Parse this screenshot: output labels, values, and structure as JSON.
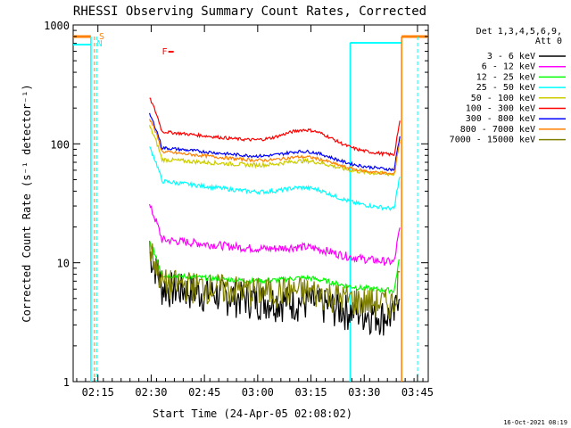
{
  "chart_data": {
    "type": "line",
    "title": "RHESSI Observing Summary Count Rates, Corrected",
    "xlabel": "Start Time (24-Apr-05 02:08:02)",
    "ylabel": "Corrected Count Rate (s⁻¹ detector⁻¹)",
    "y_scale": "log",
    "ylim": [
      1,
      1000
    ],
    "xlim_minutes_after_0208": [
      0,
      100
    ],
    "x_ticks": [
      {
        "label": "02:15",
        "minutes": 6.97
      },
      {
        "label": "02:30",
        "minutes": 21.97
      },
      {
        "label": "02:45",
        "minutes": 36.97
      },
      {
        "label": "03:00",
        "minutes": 51.97
      },
      {
        "label": "03:15",
        "minutes": 66.97
      },
      {
        "label": "03:30",
        "minutes": 81.97
      },
      {
        "label": "03:45",
        "minutes": 96.97
      }
    ],
    "y_ticks": [
      {
        "label": "1",
        "value": 1
      },
      {
        "label": "10",
        "value": 10
      },
      {
        "label": "100",
        "value": 100
      },
      {
        "label": "1000",
        "value": 1000
      }
    ],
    "legend_title": [
      "Det 1,3,4,5,6,9,",
      "Att 0"
    ],
    "legend_position": "right",
    "series": [
      {
        "name": "3 - 6 keV",
        "color": "#000000",
        "start": 6.5,
        "end": 3.5,
        "hump": 0.3,
        "noise": 0.35
      },
      {
        "name": "6 - 12 keV",
        "color": "#ff00ff",
        "start": 16,
        "end": 10,
        "hump": 1.6,
        "noise": 0.08
      },
      {
        "name": "12 - 25 keV",
        "color": "#00ff00",
        "start": 8,
        "end": 5.8,
        "hump": 0.9,
        "noise": 0.05
      },
      {
        "name": "25 - 50 keV",
        "color": "#00ffff",
        "start": 50,
        "end": 28,
        "hump": 8,
        "noise": 0.04
      },
      {
        "name": "50 - 100 keV",
        "color": "#cccc00",
        "start": 75,
        "end": 55,
        "hump": 10,
        "noise": 0.04
      },
      {
        "name": "100 - 300 keV",
        "color": "#ff0000",
        "start": 130,
        "end": 80,
        "hump": 35,
        "noise": 0.03
      },
      {
        "name": "300 - 800 keV",
        "color": "#0000ff",
        "start": 95,
        "end": 60,
        "hump": 15,
        "noise": 0.03
      },
      {
        "name": "800 - 7000 keV",
        "color": "#ff8000",
        "start": 88,
        "end": 55,
        "hump": 12,
        "noise": 0.03
      },
      {
        "name": "7000 - 15000 keV",
        "color": "#808000",
        "start": 7,
        "end": 4.5,
        "hump": 0.5,
        "noise": 0.3
      }
    ],
    "flags": [
      {
        "label": "S",
        "color": "#ff8000"
      },
      {
        "label": "N",
        "color": "#00ffff"
      },
      {
        "label": "F",
        "color": "#ff0000"
      }
    ]
  },
  "footer": {
    "timestamp": "16-Oct-2021 08:19"
  }
}
